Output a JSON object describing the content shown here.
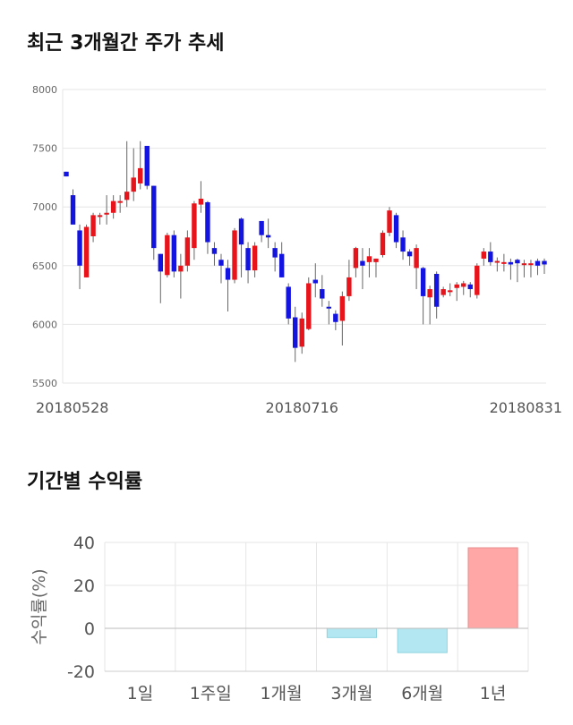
{
  "sections": {
    "price_trend_title": "최근 3개월간 주가 추세",
    "returns_title": "기간별 수익률"
  },
  "colors": {
    "up": "#e8141b",
    "down": "#1414e0",
    "wick": "#666666",
    "positive_bar": "#ffa6a6",
    "negative_bar": "#b3e8f2",
    "grid": "#e6e6e6"
  },
  "chart_data": [
    {
      "type": "candlestick",
      "title": "최근 3개월간 주가 추세",
      "ylim": [
        5500,
        8000
      ],
      "yticks": [
        "5500",
        "6000",
        "6500",
        "7000",
        "7500",
        "8000"
      ],
      "xtick_labels": [
        {
          "index": 0,
          "label": "20180528"
        },
        {
          "index": 35,
          "label": "20180716"
        },
        {
          "index": 71,
          "label": "20180831"
        }
      ],
      "candles": [
        [
          7300,
          7260,
          7300,
          7260
        ],
        [
          7100,
          6850,
          7150,
          6850
        ],
        [
          6800,
          6500,
          6850,
          6300
        ],
        [
          6400,
          6830,
          6850,
          6400
        ],
        [
          6750,
          6930,
          6950,
          6700
        ],
        [
          6930,
          6930,
          6950,
          6850
        ],
        [
          6950,
          6950,
          7100,
          6850
        ],
        [
          6950,
          7050,
          7100,
          6900
        ],
        [
          7050,
          7050,
          7100,
          6950
        ],
        [
          7060,
          7130,
          7560,
          7000
        ],
        [
          7130,
          7250,
          7500,
          7050
        ],
        [
          7200,
          7330,
          7560,
          7150
        ],
        [
          7520,
          7180,
          7520,
          7150
        ],
        [
          7180,
          6650,
          7180,
          6550
        ],
        [
          6600,
          6450,
          6600,
          6180
        ],
        [
          6420,
          6760,
          6780,
          6400
        ],
        [
          6760,
          6450,
          6800,
          6400
        ],
        [
          6450,
          6500,
          6600,
          6220
        ],
        [
          6500,
          6740,
          6800,
          6450
        ],
        [
          6650,
          7030,
          7050,
          6550
        ],
        [
          7020,
          7070,
          7220,
          6950
        ],
        [
          7040,
          6700,
          7050,
          6600
        ],
        [
          6650,
          6600,
          6700,
          6500
        ],
        [
          6550,
          6500,
          6600,
          6350
        ],
        [
          6480,
          6380,
          6550,
          6110
        ],
        [
          6380,
          6800,
          6820,
          6350
        ],
        [
          6900,
          6680,
          6910,
          6400
        ],
        [
          6650,
          6460,
          6700,
          6350
        ],
        [
          6460,
          6670,
          6700,
          6400
        ],
        [
          6880,
          6760,
          6880,
          6700
        ],
        [
          6760,
          6740,
          6900,
          6650
        ],
        [
          6650,
          6570,
          6700,
          6450
        ],
        [
          6600,
          6400,
          6700,
          6400
        ],
        [
          6320,
          6050,
          6350,
          6000
        ],
        [
          6060,
          5800,
          6150,
          5680
        ],
        [
          5810,
          6050,
          6100,
          5750
        ],
        [
          5960,
          6350,
          6400,
          5950
        ],
        [
          6380,
          6350,
          6520,
          6230
        ],
        [
          6300,
          6220,
          6420,
          6150
        ],
        [
          6150,
          6140,
          6200,
          6000
        ],
        [
          6090,
          6020,
          6120,
          5950
        ],
        [
          6030,
          6240,
          6280,
          5820
        ],
        [
          6240,
          6400,
          6550,
          6200
        ],
        [
          6480,
          6650,
          6660,
          6400
        ],
        [
          6540,
          6500,
          6650,
          6300
        ],
        [
          6530,
          6580,
          6650,
          6400
        ],
        [
          6530,
          6560,
          6560,
          6400
        ],
        [
          6590,
          6780,
          6800,
          6570
        ],
        [
          6780,
          6970,
          7000,
          6750
        ],
        [
          6930,
          6700,
          6950,
          6650
        ],
        [
          6740,
          6620,
          6800,
          6550
        ],
        [
          6620,
          6580,
          6640,
          6500
        ],
        [
          6480,
          6650,
          6680,
          6300
        ],
        [
          6480,
          6240,
          6490,
          6000
        ],
        [
          6230,
          6300,
          6330,
          6000
        ],
        [
          6430,
          6150,
          6450,
          6050
        ],
        [
          6250,
          6300,
          6320,
          6230
        ],
        [
          6280,
          6290,
          6350,
          6240
        ],
        [
          6310,
          6340,
          6360,
          6200
        ],
        [
          6320,
          6350,
          6370,
          6250
        ],
        [
          6340,
          6300,
          6360,
          6230
        ],
        [
          6250,
          6500,
          6520,
          6220
        ],
        [
          6560,
          6620,
          6650,
          6500
        ],
        [
          6620,
          6530,
          6700,
          6500
        ],
        [
          6540,
          6540,
          6570,
          6450
        ],
        [
          6530,
          6530,
          6600,
          6450
        ],
        [
          6530,
          6510,
          6560,
          6380
        ],
        [
          6550,
          6520,
          6560,
          6360
        ],
        [
          6520,
          6520,
          6550,
          6400
        ],
        [
          6520,
          6520,
          6550,
          6400
        ],
        [
          6540,
          6500,
          6560,
          6420
        ],
        [
          6540,
          6510,
          6560,
          6430
        ]
      ]
    },
    {
      "type": "bar",
      "title": "기간별 수익률",
      "ylabel": "수익률(%)",
      "categories": [
        "1일",
        "1주일",
        "1개월",
        "3개월",
        "6개월",
        "1년"
      ],
      "values": [
        0,
        0,
        0,
        -4.3,
        -11.3,
        37.5
      ],
      "ylim": [
        -20,
        40
      ],
      "yticks": [
        "-20",
        "0",
        "20",
        "40"
      ]
    }
  ]
}
